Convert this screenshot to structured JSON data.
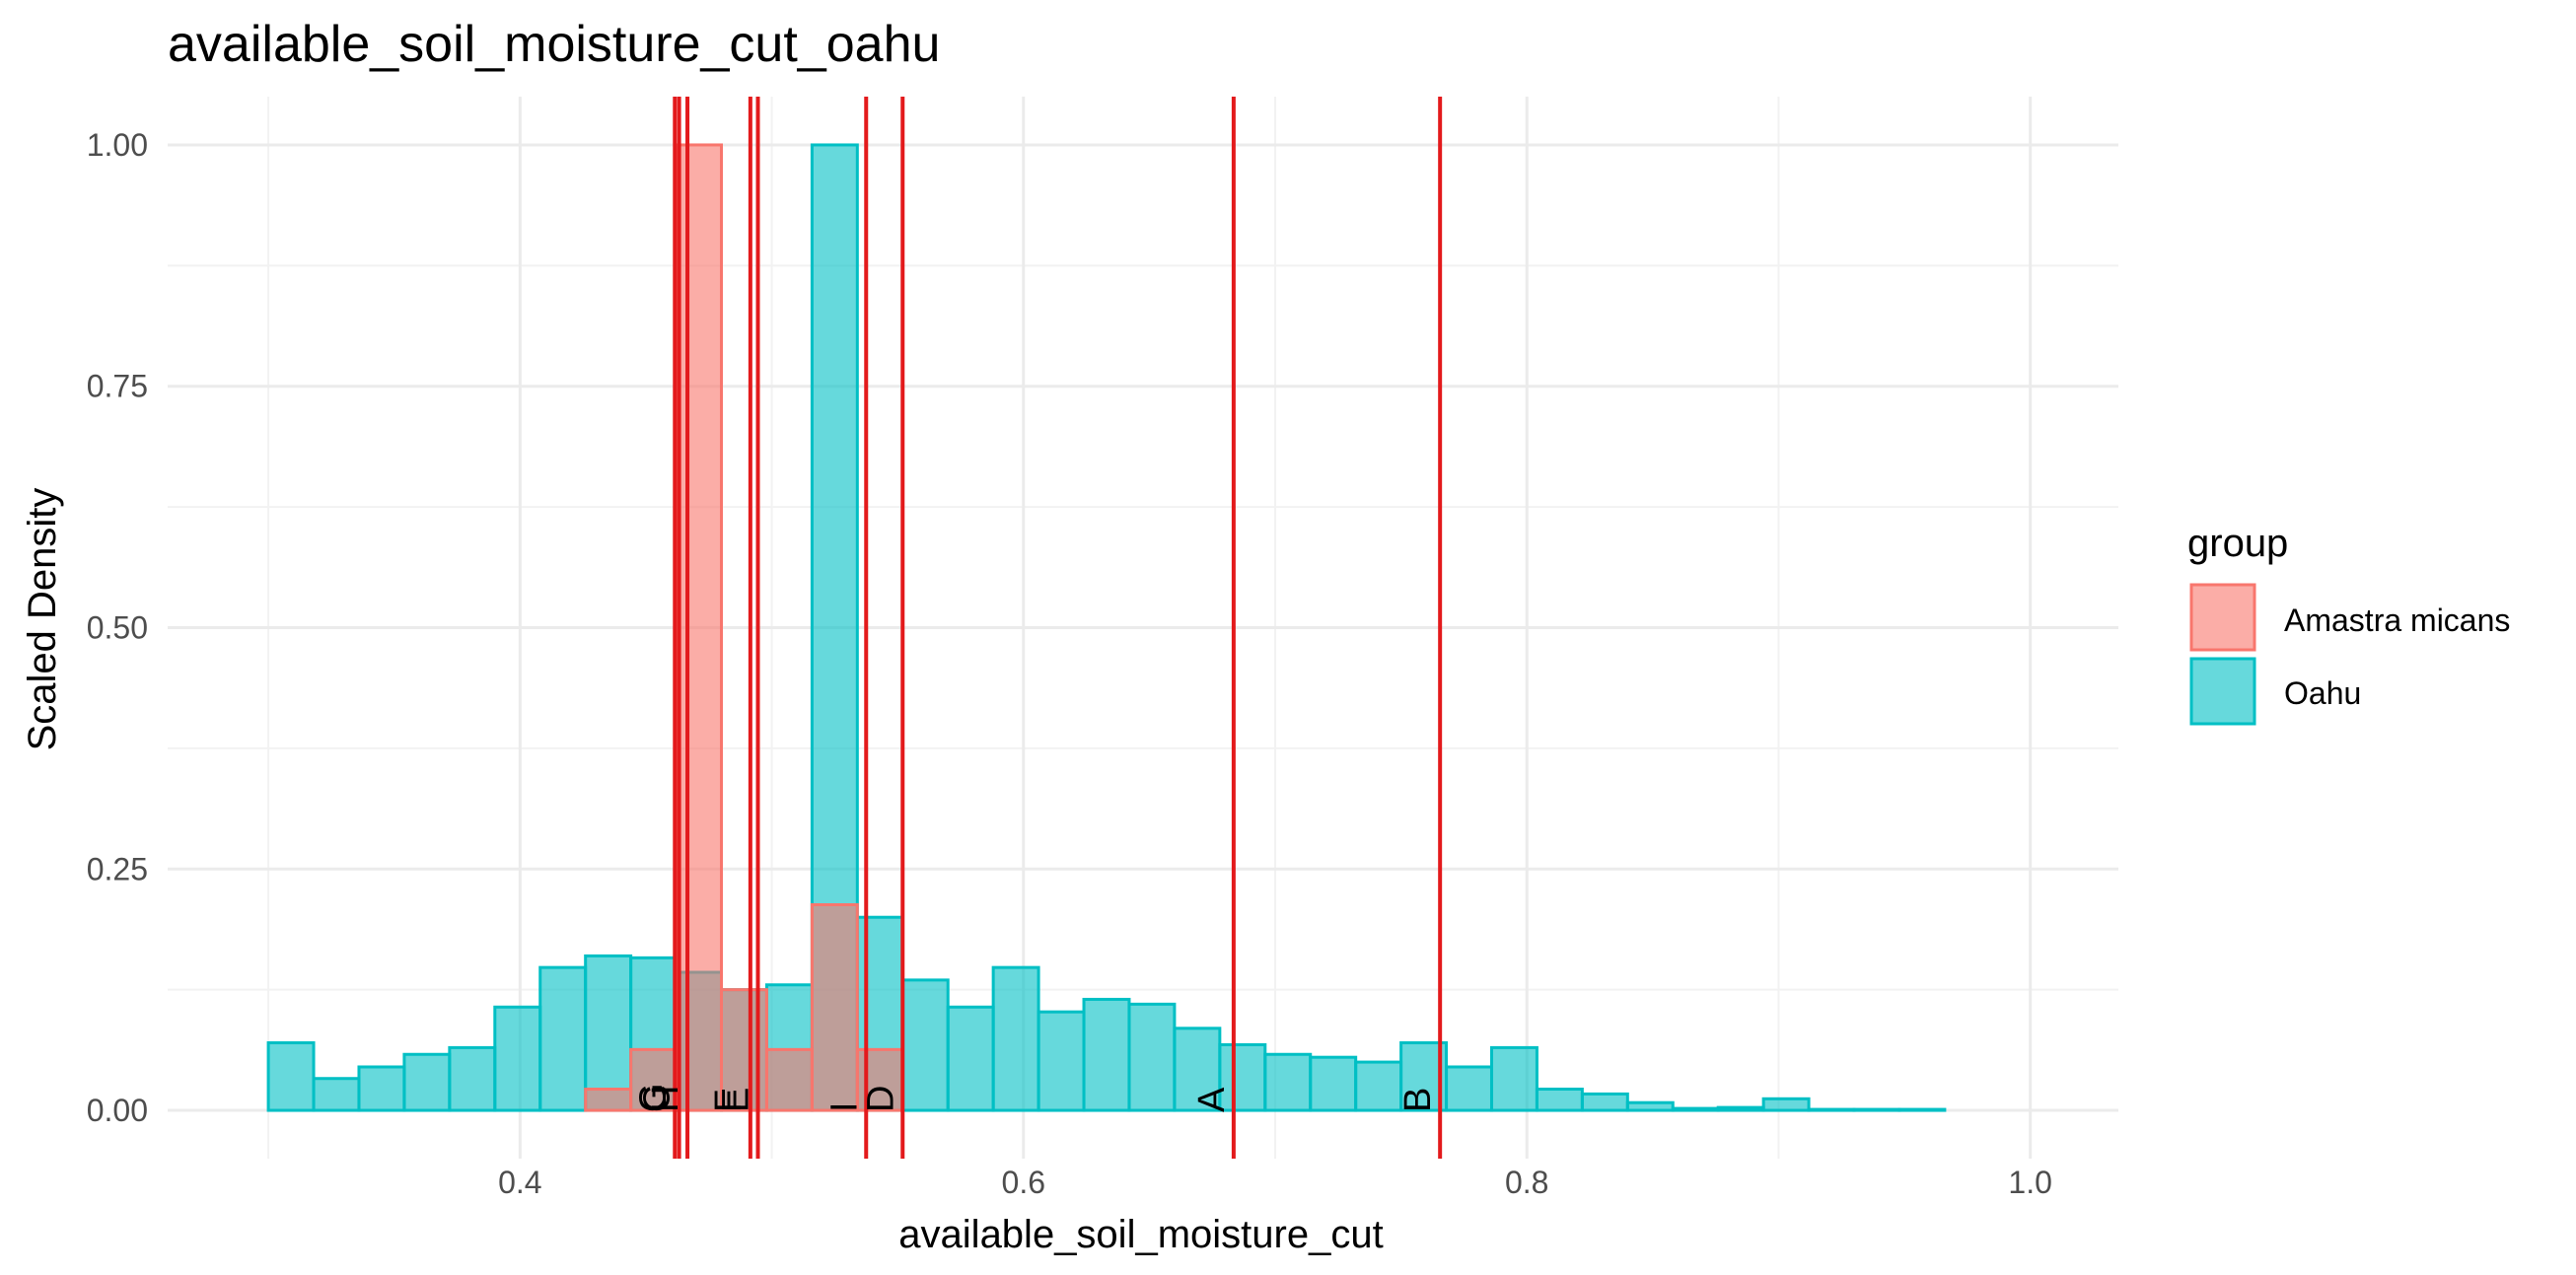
{
  "chart_data": {
    "type": "histogram",
    "title": "available_soil_moisture_cut_oahu",
    "xlabel": "available_soil_moisture_cut",
    "ylabel": "Scaled Density",
    "xlim": [
      0.26,
      1.035
    ],
    "ylim": [
      -0.05,
      1.05
    ],
    "x_ticks": [
      0.4,
      0.6,
      0.8,
      1.0
    ],
    "x_tick_labels": [
      "0.4",
      "0.6",
      "0.8",
      "1.0"
    ],
    "y_ticks": [
      0.0,
      0.25,
      0.5,
      0.75,
      1.0
    ],
    "y_tick_labels": [
      "0.00",
      "0.25",
      "0.50",
      "0.75",
      "1.00"
    ],
    "bin_width": 0.018,
    "grid": true,
    "legend": {
      "title": "group",
      "position": "right",
      "entries": [
        {
          "label": "Amastra micans",
          "fill": "#F8766D",
          "stroke": "#F8766D"
        },
        {
          "label": "Oahu",
          "fill": "#00BFC4",
          "stroke": "#00BFC4"
        }
      ]
    },
    "series": [
      {
        "name": "Oahu",
        "fill": "#00BFC4",
        "stroke": "#00BFC4",
        "opacity": 0.6,
        "bins_start": 0.3,
        "values": [
          0.07,
          0.033,
          0.045,
          0.058,
          0.065,
          0.107,
          0.148,
          0.16,
          0.158,
          0.143,
          0.125,
          0.13,
          1.0,
          0.2,
          0.135,
          0.107,
          0.148,
          0.102,
          0.115,
          0.11,
          0.085,
          0.068,
          0.058,
          0.055,
          0.05,
          0.07,
          0.045,
          0.065,
          0.022,
          0.017,
          0.008,
          0.002,
          0.003,
          0.012,
          0.001,
          0.001,
          0.001
        ]
      },
      {
        "name": "Amastra micans",
        "fill": "#F8766D",
        "stroke": "#F8766D",
        "opacity": 0.6,
        "bins_start": 0.3,
        "values": [
          0,
          0,
          0,
          0,
          0,
          0,
          0,
          0.022,
          0.063,
          1.0,
          0.125,
          0.063,
          0.213,
          0.063,
          0,
          0,
          0,
          0,
          0,
          0,
          0,
          0,
          0,
          0,
          0,
          0,
          0,
          0,
          0,
          0,
          0,
          0,
          0,
          0,
          0,
          0,
          0
        ]
      }
    ],
    "vlines": [
      {
        "label": "G",
        "x": 0.4615
      },
      {
        "label": "C",
        "x": 0.4632
      },
      {
        "label": "H",
        "x": 0.4665
      },
      {
        "label": "F",
        "x": 0.4915
      },
      {
        "label": "E",
        "x": 0.4945
      },
      {
        "label": "I",
        "x": 0.5375
      },
      {
        "label": "D",
        "x": 0.552
      },
      {
        "label": "A",
        "x": 0.6835
      },
      {
        "label": "B",
        "x": 0.7655
      }
    ],
    "vline_color": "#E31A1C"
  }
}
